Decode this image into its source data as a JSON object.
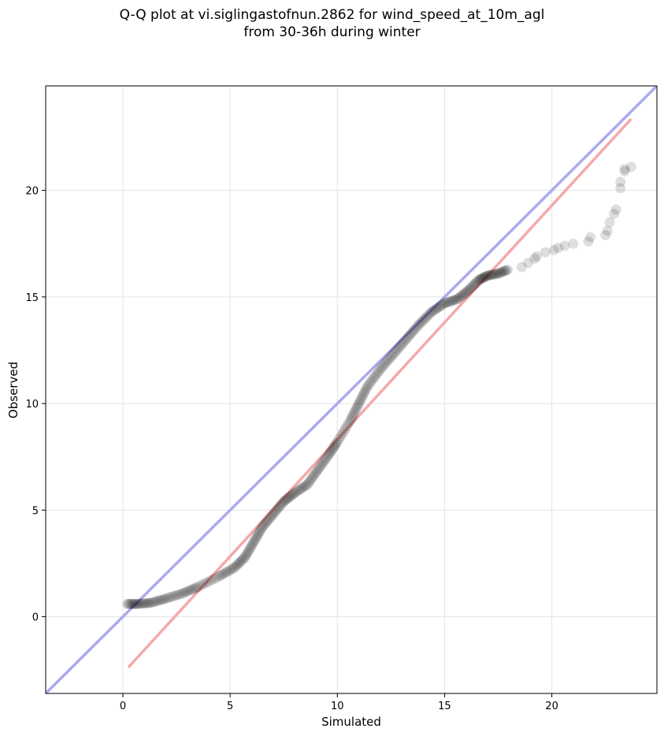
{
  "chart_data": {
    "type": "scatter",
    "title_line1": "Q-Q plot at vi.siglingastofnun.2862 for wind_speed_at_10m_agl",
    "title_line2": "from 30-36h during winter",
    "xlabel": "Simulated",
    "ylabel": "Observed",
    "xlim": [
      -3.6,
      24.9
    ],
    "ylim": [
      -3.6,
      24.9
    ],
    "xticks": [
      0,
      5,
      10,
      15,
      20
    ],
    "yticks": [
      0,
      5,
      10,
      15,
      20
    ],
    "grid": true,
    "identity_line": {
      "from": [
        -3.6,
        -3.6
      ],
      "to": [
        24.9,
        24.9
      ],
      "color": "#aaaaee"
    },
    "fit_line": {
      "from": [
        0.25,
        -2.38
      ],
      "to": [
        23.7,
        23.35
      ],
      "color": "#f5a9a9"
    },
    "point_color": "#000000",
    "quantile_curve": [
      [
        0.2,
        0.6
      ],
      [
        0.7,
        0.6
      ],
      [
        1.3,
        0.65
      ],
      [
        2.0,
        0.85
      ],
      [
        2.8,
        1.1
      ],
      [
        3.5,
        1.4
      ],
      [
        4.5,
        1.9
      ],
      [
        5.2,
        2.3
      ],
      [
        5.7,
        2.8
      ],
      [
        6.1,
        3.5
      ],
      [
        6.5,
        4.2
      ],
      [
        7.0,
        4.8
      ],
      [
        7.5,
        5.4
      ],
      [
        8.0,
        5.8
      ],
      [
        8.6,
        6.2
      ],
      [
        9.1,
        6.9
      ],
      [
        9.6,
        7.6
      ],
      [
        10.0,
        8.2
      ],
      [
        10.6,
        9.2
      ],
      [
        11.0,
        10.0
      ],
      [
        11.4,
        10.8
      ],
      [
        12.0,
        11.6
      ],
      [
        12.6,
        12.3
      ],
      [
        13.2,
        13.0
      ],
      [
        13.8,
        13.7
      ],
      [
        14.4,
        14.3
      ],
      [
        15.0,
        14.7
      ],
      [
        15.6,
        14.9
      ],
      [
        16.1,
        15.3
      ],
      [
        16.6,
        15.8
      ],
      [
        17.0,
        16.0
      ],
      [
        17.5,
        16.1
      ],
      [
        18.0,
        16.3
      ]
    ],
    "tail_points": [
      [
        18.6,
        16.4
      ],
      [
        18.9,
        16.6
      ],
      [
        19.2,
        16.8
      ],
      [
        19.3,
        16.9
      ],
      [
        19.7,
        17.1
      ],
      [
        20.1,
        17.2
      ],
      [
        20.3,
        17.3
      ],
      [
        20.6,
        17.4
      ],
      [
        21.0,
        17.5
      ],
      [
        21.7,
        17.6
      ],
      [
        21.8,
        17.8
      ],
      [
        22.5,
        17.9
      ],
      [
        22.6,
        18.1
      ],
      [
        22.7,
        18.5
      ],
      [
        22.9,
        18.9
      ],
      [
        23.0,
        19.1
      ],
      [
        23.2,
        20.1
      ],
      [
        23.2,
        20.4
      ],
      [
        23.4,
        20.9
      ],
      [
        23.4,
        21.0
      ],
      [
        23.7,
        21.1
      ]
    ]
  }
}
